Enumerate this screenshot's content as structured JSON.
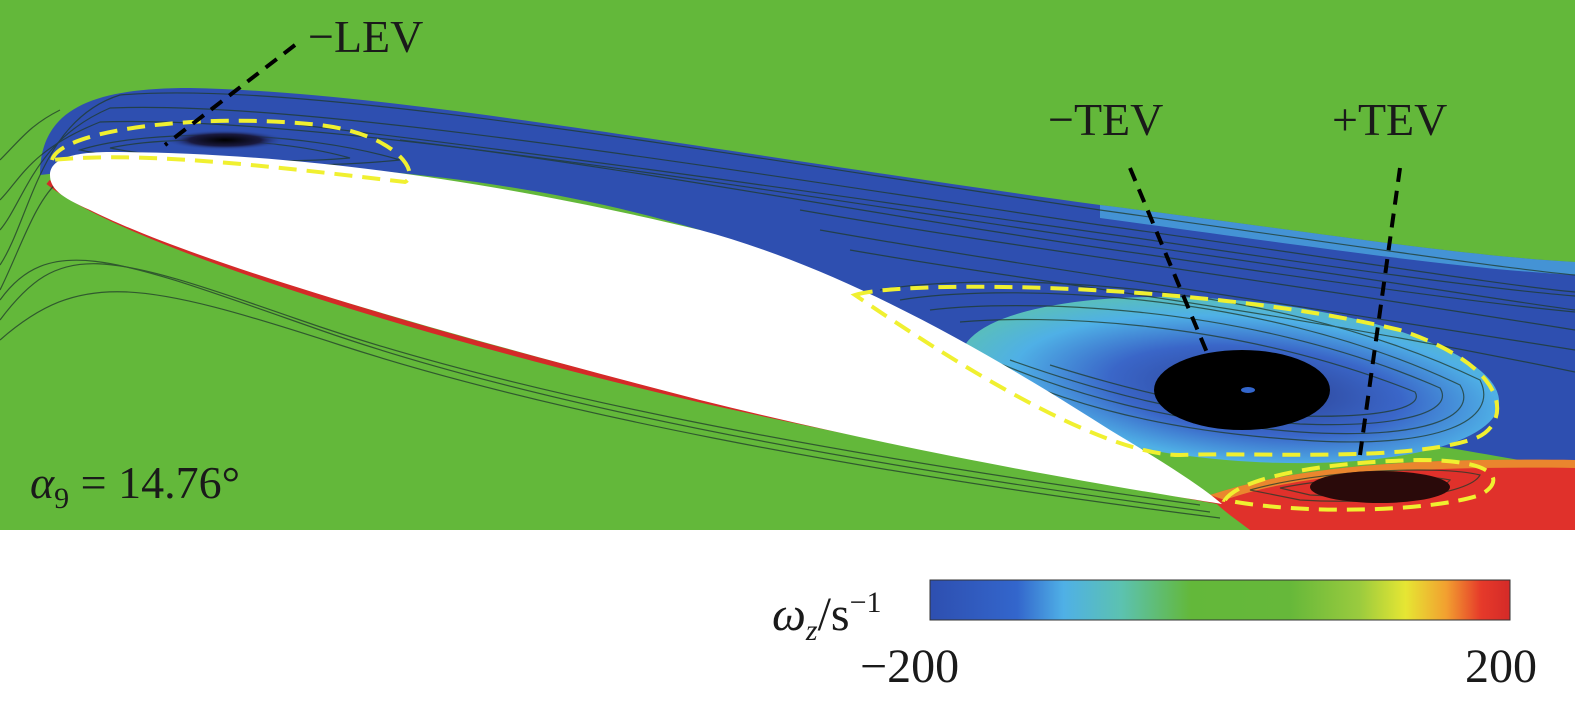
{
  "labels": {
    "lev": "−LEV",
    "tev_neg": "−TEV",
    "tev_pos": "+TEV"
  },
  "angle": {
    "symbol": "α",
    "subscript": "9",
    "value_text": " = 14.76°"
  },
  "colorbar": {
    "symbol": "ω",
    "subscript": "z",
    "unit_text": "/s",
    "unit_exp": "−1",
    "min_label": "−200",
    "max_label": "200",
    "colors": [
      "#2e4fb0",
      "#3366cc",
      "#4fb0e6",
      "#5cc2b0",
      "#63b83a",
      "#8cc63e",
      "#e6e633",
      "#f2a030",
      "#e63a2a",
      "#d42a28"
    ]
  },
  "colors": {
    "background_field": "#63b83a",
    "negative_vorticity": "#2e4fb0",
    "light_negative": "#4fb0e6",
    "positive_vorticity": "#e0312b",
    "vortex_outline": "#f0f030",
    "airfoil": "#ffffff"
  }
}
